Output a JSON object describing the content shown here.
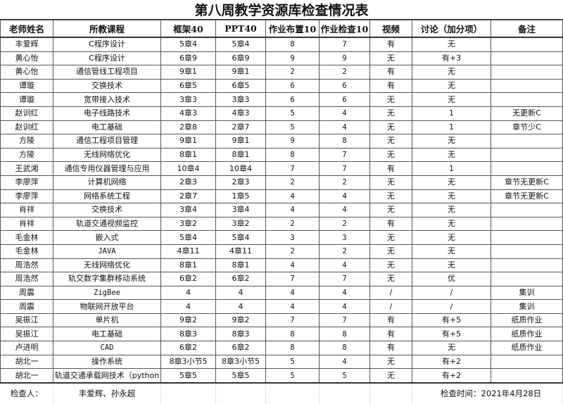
{
  "title": "第八周教学资源库检查情况表",
  "columns": [
    "老师姓名",
    "所教课程",
    "框架40",
    "PPT40",
    "作业布置10",
    "作业检查10",
    "视频",
    "讨论（加分项）",
    "备注"
  ],
  "rows": [
    [
      "丰爱辉",
      "C程序设计",
      "5章4",
      "5章4",
      "8",
      "7",
      "有",
      "无",
      ""
    ],
    [
      "黄心怡",
      "C程序设计",
      "6章9",
      "6章9",
      "9",
      "9",
      "无",
      "有+3",
      ""
    ],
    [
      "黄心怡",
      "通信管线工程项目",
      "9章1",
      "9章1",
      "2",
      "2",
      "有",
      "无",
      ""
    ],
    [
      "谭璇",
      "交换技术",
      "6章5",
      "6章5",
      "6",
      "6",
      "有",
      "无",
      ""
    ],
    [
      "谭璇",
      "宽带接入技术",
      "3章3",
      "3章3",
      "6",
      "6",
      "无",
      "无",
      ""
    ],
    [
      "赵训红",
      "电子线路技术",
      "4章3",
      "4章3",
      "5",
      "4",
      "无",
      "1",
      "无更新C"
    ],
    [
      "赵训红",
      "电工基础",
      "2章8",
      "2章7",
      "5",
      "4",
      "无",
      "1",
      "章节少C"
    ],
    [
      "方陵",
      "通信工程项目管理",
      "9章1",
      "9章1",
      "9",
      "8",
      "无",
      "无",
      ""
    ],
    [
      "方陵",
      "无线网络优化",
      "8章1",
      "8章1",
      "8",
      "7",
      "无",
      "无",
      ""
    ],
    [
      "王武湘",
      "通信专用仪器管理与应用",
      "10章4",
      "10章4",
      "7",
      "7",
      "有",
      "1",
      ""
    ],
    [
      "李廖萍",
      "计算机网络",
      "2章3",
      "2章3",
      "2",
      "2",
      "无",
      "无",
      "章节无更新C"
    ],
    [
      "李廖萍",
      "网络系统工程",
      "2章7",
      "1章5",
      "4",
      "4",
      "无",
      "无",
      "章节无更新C"
    ],
    [
      "肖祥",
      "交换技术",
      "3章4",
      "3章4",
      "4",
      "4",
      "无",
      "无",
      ""
    ],
    [
      "肖祥",
      "轨道交通视频监控",
      "3章2",
      "3章2",
      "2",
      "2",
      "有",
      "无",
      ""
    ],
    [
      "毛金林",
      "嵌入式",
      "5章4",
      "5章4",
      "3",
      "3",
      "无",
      "无",
      ""
    ],
    [
      "毛金林",
      "JAVA",
      "4章11",
      "4章11",
      "2",
      "2",
      "无",
      "无",
      ""
    ],
    [
      "周浩然",
      "无线网络优化",
      "8章1",
      "8章1",
      "4",
      "4",
      "无",
      "无",
      ""
    ],
    [
      "周浩然",
      "轨交数字集群移动系统",
      "6章2",
      "6章2",
      "7",
      "7",
      "无",
      "优",
      ""
    ],
    [
      "周震",
      "ZigBee",
      "4",
      "4",
      "4",
      "4",
      "/",
      "/",
      "集训"
    ],
    [
      "周震",
      "物联网开放平台",
      "4",
      "4",
      "4",
      "4",
      "/",
      "/",
      "集训"
    ],
    [
      "吴振江",
      "单片机",
      "9章2",
      "9章2",
      "7",
      "7",
      "有",
      "有+5",
      "纸质作业"
    ],
    [
      "吴振江",
      "电工基础",
      "8章3",
      "8章3",
      "8",
      "8",
      "有",
      "有+5",
      "纸质作业"
    ],
    [
      "卢进明",
      "CAD",
      "6章2",
      "6章2",
      "8",
      "8",
      "有",
      "无",
      "纸质作业"
    ],
    [
      "胡北一",
      "操作系统",
      "8章3小节5",
      "8章3小节5",
      "5",
      "4",
      "无",
      "有+2",
      ""
    ],
    [
      "胡北一",
      "轨道交通承载网技术（python",
      "5章5",
      "5章5",
      "5",
      "5",
      "无",
      "有+2",
      ""
    ]
  ],
  "footer": {
    "inspector_label": "检查人：",
    "inspectors": "丰爱辉、孙永超",
    "check_time": "检查时间：2021年4月28日"
  }
}
